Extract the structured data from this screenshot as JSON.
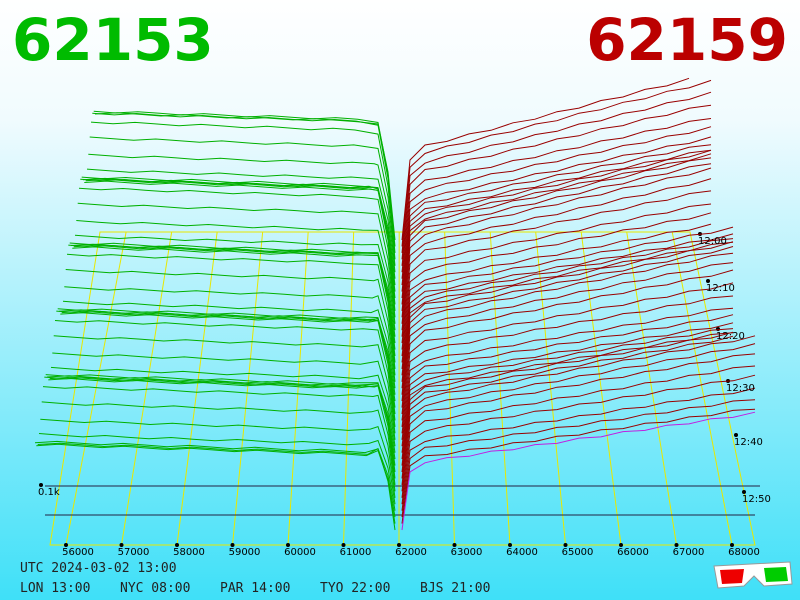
{
  "header": {
    "bid": "62153",
    "ask": "62159"
  },
  "price_axis": [
    "56000",
    "57000",
    "58000",
    "59000",
    "60000",
    "61000",
    "62000",
    "63000",
    "64000",
    "65000",
    "66000",
    "67000",
    "68000"
  ],
  "time_axis": [
    "12:00",
    "12:10",
    "12:20",
    "12:30",
    "12:40",
    "12:50"
  ],
  "depth_label": "0.1k",
  "footer": {
    "utc": "UTC 2024-03-02 13:00",
    "clocks": [
      "LON 13:00",
      "NYC 08:00",
      "PAR 14:00",
      "TYO 22:00",
      "BJS 21:00"
    ]
  }
}
